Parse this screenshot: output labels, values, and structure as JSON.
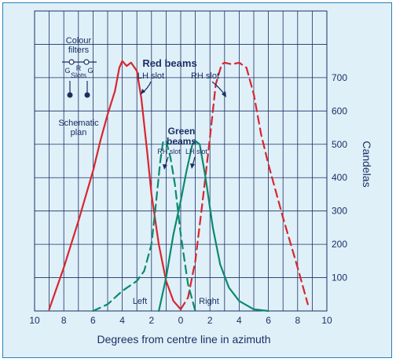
{
  "chart_data": {
    "type": "line",
    "xlabel": "Degrees from centre line in azimuth",
    "ylabel": "Candelas",
    "xlim": [
      -10,
      10
    ],
    "ylim": [
      0,
      900
    ],
    "x_ticks": [
      -10,
      -8,
      -6,
      -4,
      -2,
      0,
      2,
      4,
      6,
      8,
      10
    ],
    "x_tick_labels": [
      "10",
      "8",
      "6",
      "4",
      "2",
      "0",
      "2",
      "4",
      "6",
      "8",
      "10"
    ],
    "y_ticks": [
      100,
      200,
      300,
      400,
      500,
      600,
      700
    ],
    "y_tick_labels": [
      "100",
      "200",
      "300",
      "400",
      "500",
      "600",
      "700"
    ],
    "grid": true,
    "series": [
      {
        "name": "Red beams LH slot",
        "color": "#d8262e",
        "dash": false,
        "x": [
          -9,
          -8,
          -7,
          -6,
          -5.5,
          -5,
          -4.5,
          -4.2,
          -4,
          -3.7,
          -3.4,
          -3,
          -2.7,
          -2.3,
          -2,
          -1.5,
          -1,
          -0.5,
          0
        ],
        "y": [
          5,
          130,
          270,
          420,
          510,
          590,
          660,
          730,
          750,
          735,
          745,
          720,
          640,
          480,
          350,
          200,
          90,
          30,
          5
        ]
      },
      {
        "name": "Red beams RH slot",
        "color": "#d8262e",
        "dash": true,
        "x": [
          0,
          0.5,
          1,
          1.5,
          2,
          2.4,
          2.8,
          3,
          3.5,
          4,
          4.5,
          5,
          5.5,
          6,
          7,
          8,
          8.7
        ],
        "y": [
          5,
          40,
          150,
          330,
          520,
          680,
          740,
          745,
          740,
          745,
          730,
          650,
          530,
          440,
          280,
          130,
          20
        ]
      },
      {
        "name": "Green beams RH slot",
        "color": "#0c8a6e",
        "dash": true,
        "x": [
          -6,
          -5,
          -4,
          -3,
          -2.5,
          -2,
          -1.7,
          -1.4,
          -1.2,
          -1,
          -0.7,
          -0.4,
          0,
          0.5,
          1
        ],
        "y": [
          0,
          20,
          60,
          90,
          120,
          200,
          320,
          450,
          510,
          510,
          460,
          380,
          230,
          80,
          0
        ]
      },
      {
        "name": "Green beams LH slot",
        "color": "#0c8a6e",
        "dash": false,
        "x": [
          -1.5,
          -1,
          -0.5,
          0,
          0.4,
          0.8,
          1,
          1.3,
          1.7,
          2.2,
          2.7,
          3.3,
          4,
          5,
          6
        ],
        "y": [
          0,
          100,
          230,
          330,
          420,
          500,
          510,
          500,
          400,
          250,
          140,
          70,
          30,
          5,
          0
        ]
      }
    ],
    "annotations": {
      "red_beams": "Red beams",
      "red_lh": "LH slot",
      "red_rh": "RH slot",
      "green_line1": "Green",
      "green_line2": "beams",
      "green_rh": "RH slot",
      "green_lh": "LH slot",
      "left": "Left",
      "right": "Right",
      "colour": "Colour",
      "filters": "filters",
      "g1": "G",
      "r": "R",
      "g2": "G",
      "slots": "Slots",
      "schematic": "Schematic",
      "plan": "plan"
    }
  }
}
